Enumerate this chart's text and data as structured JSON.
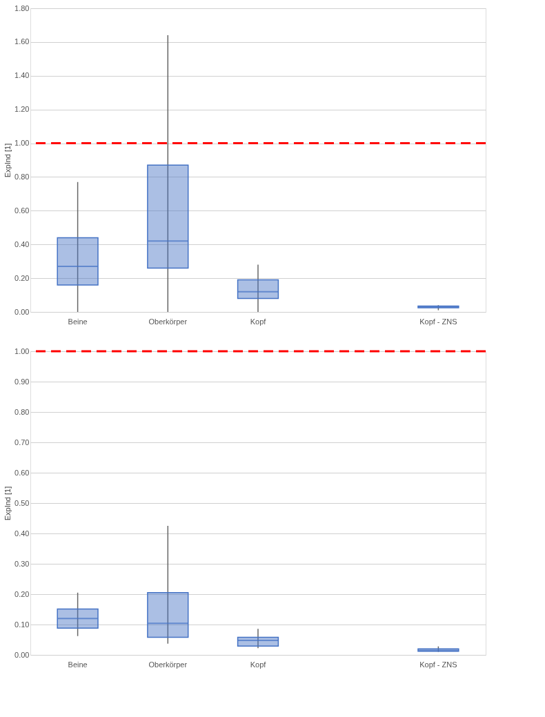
{
  "chart_data": [
    {
      "type": "box",
      "ylabel": "ExpInd [1]",
      "categories": [
        "Beine",
        "Oberkörper",
        "Kopf",
        null,
        "Kopf - ZNS"
      ],
      "series": [
        {
          "color": "#4472c4",
          "boxes": [
            {
              "low": 0,
              "q1": 0.16,
              "median": 0.27,
              "q3": 0.44,
              "high": 0.77
            },
            {
              "low": 0,
              "q1": 0.26,
              "median": 0.42,
              "q3": 0.87,
              "high": 1.64
            },
            {
              "low": 0,
              "q1": 0.08,
              "median": 0.12,
              "q3": 0.19,
              "high": 0.28
            },
            null,
            {
              "low": 0.01,
              "q1": 0.025,
              "median": 0.03,
              "q3": 0.035,
              "high": 0.04
            }
          ]
        }
      ],
      "ylim": [
        0,
        1.8
      ],
      "yticks": [
        {
          "value": 0,
          "label": "0.00"
        },
        {
          "value": 0.2,
          "label": "0.20"
        },
        {
          "value": 0.4,
          "label": "0.40"
        },
        {
          "value": 0.6,
          "label": "0.60"
        },
        {
          "value": 0.8,
          "label": "0.80"
        },
        {
          "value": 1.0,
          "label": "1.00"
        },
        {
          "value": 1.2,
          "label": "1.20"
        },
        {
          "value": 1.4,
          "label": "1.40"
        },
        {
          "value": 1.6,
          "label": "1.60"
        },
        {
          "value": 1.8,
          "label": "1.80"
        }
      ],
      "ref_lines": [
        {
          "axis": "y",
          "value": 1.0,
          "label": null,
          "color": "#ff0000",
          "line_style": "dashed"
        }
      ],
      "grid": "y"
    },
    {
      "type": "box",
      "ylabel": "ExpInd [1]",
      "categories": [
        "Beine",
        "Oberkörper",
        "Kopf",
        null,
        "Kopf - ZNS"
      ],
      "series": [
        {
          "color": "#4472c4",
          "boxes": [
            {
              "low": 0.062,
              "q1": 0.088,
              "median": 0.12,
              "q3": 0.151,
              "high": 0.205
            },
            {
              "low": 0.037,
              "q1": 0.058,
              "median": 0.104,
              "q3": 0.205,
              "high": 0.425
            },
            {
              "low": 0.022,
              "q1": 0.029,
              "median": 0.048,
              "q3": 0.058,
              "high": 0.086
            },
            null,
            {
              "low": 0.01,
              "q1": 0.012,
              "median": 0.015,
              "q3": 0.02,
              "high": 0.028
            }
          ]
        }
      ],
      "ylim": [
        0,
        1.0
      ],
      "yticks": [
        {
          "value": 0,
          "label": "0.00"
        },
        {
          "value": 0.1,
          "label": "0.10"
        },
        {
          "value": 0.2,
          "label": "0.20"
        },
        {
          "value": 0.3,
          "label": "0.30"
        },
        {
          "value": 0.4,
          "label": "0.40"
        },
        {
          "value": 0.5,
          "label": "0.50"
        },
        {
          "value": 0.6,
          "label": "0.60"
        },
        {
          "value": 0.7,
          "label": "0.70"
        },
        {
          "value": 0.8,
          "label": "0.80"
        },
        {
          "value": 0.9,
          "label": "0.90"
        },
        {
          "value": 1.0,
          "label": "1.00"
        }
      ],
      "ref_lines": [
        {
          "axis": "y",
          "value": 1.0,
          "label": null,
          "color": "#ff0000",
          "line_style": "dashed"
        }
      ],
      "grid": "y"
    }
  ]
}
